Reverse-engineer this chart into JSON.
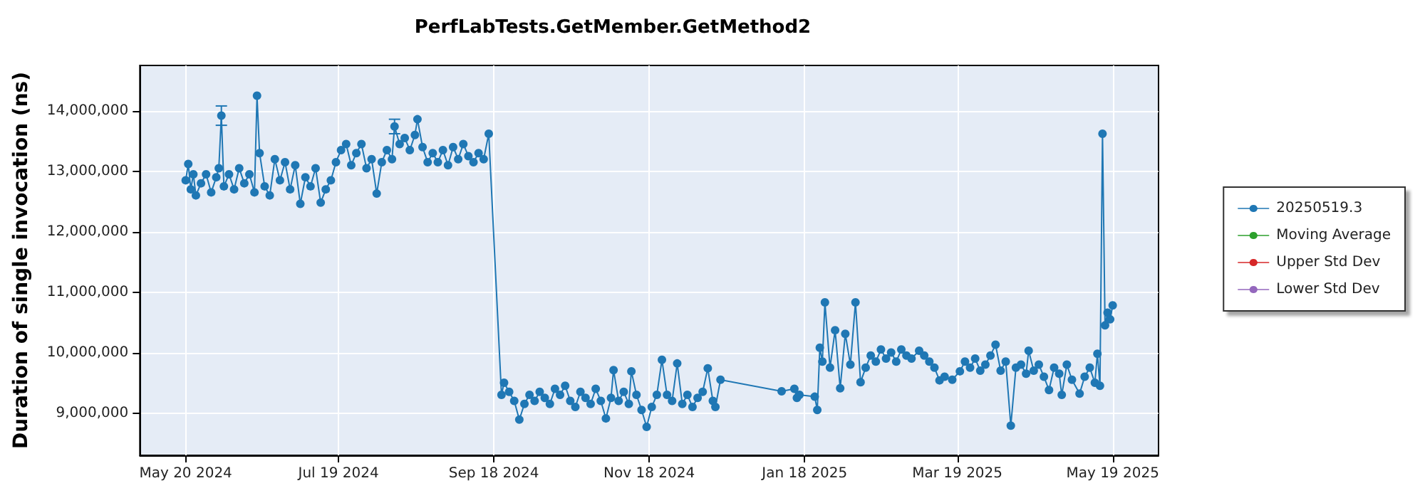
{
  "chart_data": {
    "type": "line",
    "title": "PerfLabTests.GetMember.GetMethod2",
    "ylabel": "Duration of single invocation (ns)",
    "xlim": [
      "2024-05-02",
      "2025-06-06"
    ],
    "xticks": [
      {
        "value": "2024-05-20",
        "label": "May 20 2024"
      },
      {
        "value": "2024-07-19",
        "label": "Jul 19 2024"
      },
      {
        "value": "2024-09-18",
        "label": "Sep 18 2024"
      },
      {
        "value": "2024-11-18",
        "label": "Nov 18 2024"
      },
      {
        "value": "2025-01-18",
        "label": "Jan 18 2025"
      },
      {
        "value": "2025-03-19",
        "label": "Mar 19 2025"
      },
      {
        "value": "2025-05-19",
        "label": "May 19 2025"
      }
    ],
    "ylim": [
      8300000,
      14750000
    ],
    "yticks": [
      {
        "value": 9000000,
        "label": "9,000,000"
      },
      {
        "value": 10000000,
        "label": "10,000,000"
      },
      {
        "value": 11000000,
        "label": "11,000,000"
      },
      {
        "value": 12000000,
        "label": "12,000,000"
      },
      {
        "value": 13000000,
        "label": "13,000,000"
      },
      {
        "value": 14000000,
        "label": "14,000,000"
      }
    ],
    "grid": true,
    "legend": "right",
    "marker": "circle",
    "line_style": "solid",
    "series": [
      {
        "name": "20250519.3",
        "color": "#1f77b4",
        "x": [
          "2024-05-20",
          "2024-05-21",
          "2024-05-22",
          "2024-05-23",
          "2024-05-24",
          "2024-05-26",
          "2024-05-28",
          "2024-05-30",
          "2024-06-01",
          "2024-06-02",
          "2024-06-03",
          "2024-06-04",
          "2024-06-06",
          "2024-06-08",
          "2024-06-10",
          "2024-06-12",
          "2024-06-14",
          "2024-06-16",
          "2024-06-17",
          "2024-06-18",
          "2024-06-20",
          "2024-06-22",
          "2024-06-24",
          "2024-06-26",
          "2024-06-28",
          "2024-06-30",
          "2024-07-02",
          "2024-07-04",
          "2024-07-06",
          "2024-07-08",
          "2024-07-10",
          "2024-07-12",
          "2024-07-14",
          "2024-07-16",
          "2024-07-18",
          "2024-07-20",
          "2024-07-22",
          "2024-07-24",
          "2024-07-26",
          "2024-07-28",
          "2024-07-30",
          "2024-08-01",
          "2024-08-03",
          "2024-08-05",
          "2024-08-07",
          "2024-08-09",
          "2024-08-10",
          "2024-08-12",
          "2024-08-14",
          "2024-08-16",
          "2024-08-18",
          "2024-08-19",
          "2024-08-21",
          "2024-08-23",
          "2024-08-25",
          "2024-08-27",
          "2024-08-29",
          "2024-08-31",
          "2024-09-02",
          "2024-09-04",
          "2024-09-06",
          "2024-09-08",
          "2024-09-10",
          "2024-09-12",
          "2024-09-14",
          "2024-09-16",
          "2024-09-21",
          "2024-09-22",
          "2024-09-24",
          "2024-09-26",
          "2024-09-28",
          "2024-09-30",
          "2024-10-02",
          "2024-10-04",
          "2024-10-06",
          "2024-10-08",
          "2024-10-10",
          "2024-10-12",
          "2024-10-14",
          "2024-10-16",
          "2024-10-18",
          "2024-10-20",
          "2024-10-22",
          "2024-10-24",
          "2024-10-26",
          "2024-10-28",
          "2024-10-30",
          "2024-11-01",
          "2024-11-03",
          "2024-11-04",
          "2024-11-06",
          "2024-11-08",
          "2024-11-10",
          "2024-11-11",
          "2024-11-13",
          "2024-11-15",
          "2024-11-17",
          "2024-11-19",
          "2024-11-21",
          "2024-11-23",
          "2024-11-25",
          "2024-11-27",
          "2024-11-29",
          "2024-12-01",
          "2024-12-03",
          "2024-12-05",
          "2024-12-07",
          "2024-12-09",
          "2024-12-11",
          "2024-12-13",
          "2024-12-14",
          "2024-12-16",
          "2025-01-09",
          "2025-01-14",
          "2025-01-15",
          "2025-01-16",
          "2025-01-22",
          "2025-01-23",
          "2025-01-24",
          "2025-01-25",
          "2025-01-26",
          "2025-01-28",
          "2025-01-30",
          "2025-02-01",
          "2025-02-03",
          "2025-02-05",
          "2025-02-07",
          "2025-02-09",
          "2025-02-11",
          "2025-02-13",
          "2025-02-15",
          "2025-02-17",
          "2025-02-19",
          "2025-02-21",
          "2025-02-23",
          "2025-02-25",
          "2025-02-27",
          "2025-03-01",
          "2025-03-04",
          "2025-03-06",
          "2025-03-08",
          "2025-03-10",
          "2025-03-12",
          "2025-03-14",
          "2025-03-17",
          "2025-03-20",
          "2025-03-22",
          "2025-03-24",
          "2025-03-26",
          "2025-03-28",
          "2025-03-30",
          "2025-04-01",
          "2025-04-03",
          "2025-04-05",
          "2025-04-07",
          "2025-04-09",
          "2025-04-11",
          "2025-04-13",
          "2025-04-15",
          "2025-04-16",
          "2025-04-18",
          "2025-04-20",
          "2025-04-22",
          "2025-04-24",
          "2025-04-26",
          "2025-04-28",
          "2025-04-29",
          "2025-05-01",
          "2025-05-03",
          "2025-05-06",
          "2025-05-08",
          "2025-05-10",
          "2025-05-12",
          "2025-05-13",
          "2025-05-14",
          "2025-05-15",
          "2025-05-16",
          "2025-05-17",
          "2025-05-18",
          "2025-05-19"
        ],
        "values": [
          12850000,
          13120000,
          12700000,
          12950000,
          12600000,
          12800000,
          12950000,
          12650000,
          12900000,
          13050000,
          13920000,
          12750000,
          12950000,
          12700000,
          13050000,
          12800000,
          12950000,
          12650000,
          14250000,
          13300000,
          12750000,
          12600000,
          13200000,
          12850000,
          13150000,
          12700000,
          13100000,
          12460000,
          12900000,
          12750000,
          13050000,
          12480000,
          12700000,
          12850000,
          13150000,
          13350000,
          13450000,
          13100000,
          13300000,
          13450000,
          13050000,
          13200000,
          12630000,
          13150000,
          13350000,
          13200000,
          13740000,
          13450000,
          13550000,
          13350000,
          13600000,
          13860000,
          13400000,
          13150000,
          13300000,
          13150000,
          13350000,
          13100000,
          13400000,
          13200000,
          13450000,
          13250000,
          13150000,
          13300000,
          13200000,
          13620000,
          9300000,
          9500000,
          9350000,
          9200000,
          8890000,
          9150000,
          9300000,
          9200000,
          9350000,
          9250000,
          9150000,
          9400000,
          9300000,
          9450000,
          9200000,
          9100000,
          9350000,
          9250000,
          9150000,
          9400000,
          9200000,
          8910000,
          9250000,
          9710000,
          9200000,
          9350000,
          9150000,
          9690000,
          9300000,
          9050000,
          8770000,
          9100000,
          9300000,
          9880000,
          9300000,
          9200000,
          9820000,
          9150000,
          9300000,
          9100000,
          9250000,
          9350000,
          9740000,
          9200000,
          9100000,
          9550000,
          9360000,
          9400000,
          9250000,
          9300000,
          9270000,
          9050000,
          10080000,
          9850000,
          10830000,
          9750000,
          10370000,
          9410000,
          10310000,
          9800000,
          10830000,
          9510000,
          9750000,
          9950000,
          9850000,
          10050000,
          9900000,
          10000000,
          9850000,
          10050000,
          9950000,
          9900000,
          10030000,
          9950000,
          9850000,
          9750000,
          9540000,
          9600000,
          9550000,
          9690000,
          9850000,
          9750000,
          9900000,
          9700000,
          9800000,
          9950000,
          10130000,
          9700000,
          9850000,
          8790000,
          9750000,
          9800000,
          9650000,
          10030000,
          9700000,
          9800000,
          9600000,
          9380000,
          9750000,
          9650000,
          9300000,
          9800000,
          9550000,
          9320000,
          9600000,
          9750000,
          9500000,
          9980000,
          9450000,
          13620000,
          10450000,
          10660000,
          10550000,
          10780000
        ],
        "errors": [
          null,
          null,
          null,
          null,
          null,
          null,
          null,
          null,
          null,
          null,
          160000,
          null,
          null,
          null,
          null,
          null,
          null,
          null,
          null,
          null,
          null,
          null,
          null,
          null,
          null,
          null,
          null,
          null,
          null,
          null,
          null,
          null,
          null,
          null,
          null,
          null,
          null,
          null,
          null,
          null,
          null,
          null,
          null,
          null,
          null,
          null,
          120000,
          null,
          null,
          null,
          null,
          null,
          null,
          null,
          null,
          null,
          null,
          null,
          null,
          null,
          null,
          null,
          null,
          null,
          null,
          null,
          null,
          null,
          null,
          null,
          null,
          null,
          null,
          null,
          null,
          null,
          null,
          null,
          null,
          null,
          null,
          null,
          null,
          null,
          null,
          null,
          null,
          null,
          null,
          null,
          null,
          null,
          null,
          null,
          null,
          null,
          null,
          null,
          null,
          null,
          null,
          null,
          null,
          null,
          null,
          null,
          null,
          null,
          null,
          null,
          null,
          null,
          null,
          null,
          null,
          null,
          null,
          null,
          null,
          null,
          null,
          null,
          null,
          null,
          null,
          null,
          null,
          null,
          null,
          null,
          null,
          null,
          null,
          null,
          null,
          null,
          null,
          null,
          null,
          null,
          null,
          null,
          null,
          null,
          null,
          null,
          null,
          null,
          null,
          null,
          null,
          null,
          null,
          null,
          null,
          null,
          null,
          null,
          null,
          null,
          null,
          null,
          null,
          null,
          null,
          null,
          null,
          null,
          null,
          null,
          null,
          null,
          null,
          null,
          null,
          null,
          null,
          null,
          null,
          null
        ]
      },
      {
        "name": "Moving Average",
        "color": "#2ca02c"
      },
      {
        "name": "Upper Std Dev",
        "color": "#d62728"
      },
      {
        "name": "Lower Std Dev",
        "color": "#9467bd"
      }
    ]
  }
}
